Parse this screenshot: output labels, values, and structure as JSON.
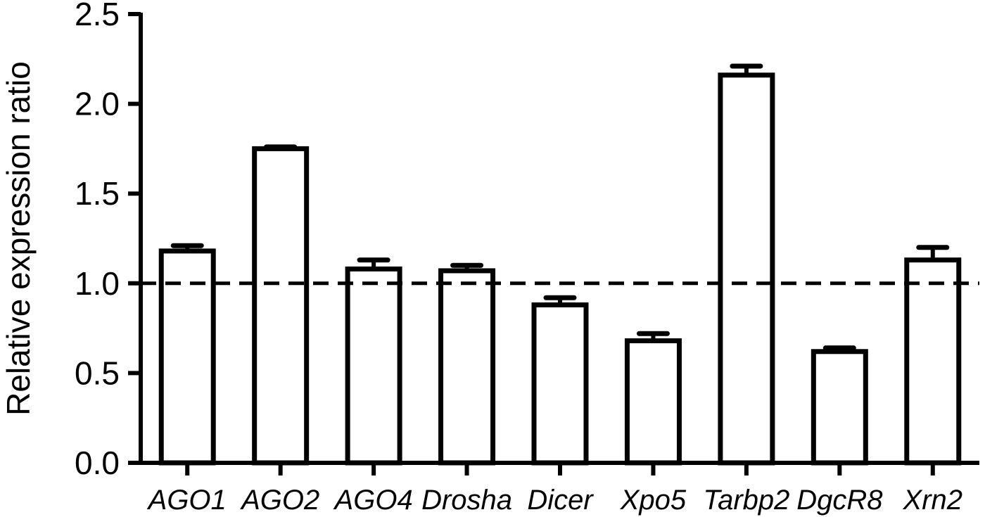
{
  "chart_data": {
    "type": "bar",
    "title": "",
    "xlabel": "",
    "ylabel": "Relative expression ratio",
    "ylim": [
      0,
      2.5
    ],
    "yticks": [
      "0.0",
      "0.5",
      "1.0",
      "1.5",
      "2.0",
      "2.5"
    ],
    "ytick_values": [
      0,
      0.5,
      1.0,
      1.5,
      2.0,
      2.5
    ],
    "categories": [
      "AGO1",
      "AGO2",
      "AGO4",
      "Drosha",
      "Dicer",
      "Xpo5",
      "Tarbp2",
      "DgcR8",
      "Xrn2"
    ],
    "values": [
      1.18,
      1.75,
      1.08,
      1.07,
      0.88,
      0.68,
      2.16,
      0.62,
      1.13
    ],
    "error": [
      0.03,
      0.01,
      0.05,
      0.03,
      0.04,
      0.04,
      0.05,
      0.02,
      0.07
    ],
    "reference_line": 1.0,
    "grid": false,
    "bar_fill": "#ffffff",
    "bar_stroke": "#000000"
  }
}
